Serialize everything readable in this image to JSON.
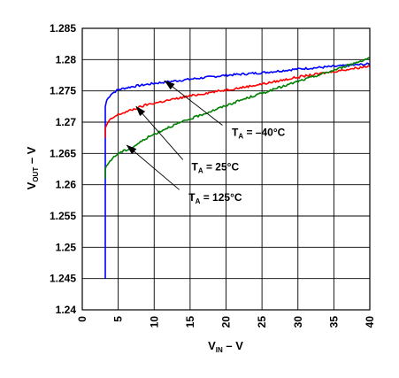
{
  "chart_data": {
    "type": "line",
    "xlabel": {
      "main": "V",
      "sub": "IN",
      "suffix": " – V"
    },
    "ylabel": {
      "main": "V",
      "sub": "OUT",
      "suffix": " – V"
    },
    "xlim": [
      0,
      40
    ],
    "ylim": [
      1.24,
      1.285
    ],
    "x_ticks": [
      "0",
      "5",
      "10",
      "15",
      "20",
      "25",
      "30",
      "35",
      "40"
    ],
    "y_ticks": [
      "1.24",
      "1.245",
      "1.25",
      "1.255",
      "1.26",
      "1.265",
      "1.27",
      "1.275",
      "1.28",
      "1.285"
    ],
    "grid": true,
    "series": [
      {
        "color": "#0000ff",
        "x": [
          3.2,
          3.2,
          3.4,
          4,
          5,
          7,
          10,
          13,
          16,
          20,
          25,
          30,
          35,
          40
        ],
        "y": [
          1.245,
          1.2725,
          1.2735,
          1.2745,
          1.2752,
          1.2757,
          1.2762,
          1.2766,
          1.277,
          1.2775,
          1.2779,
          1.2785,
          1.2789,
          1.2793
        ]
      },
      {
        "color": "#ff0000",
        "x": [
          3.2,
          3.2,
          3.5,
          4,
          5,
          7,
          9,
          12,
          15,
          18,
          22,
          26,
          30,
          35,
          40
        ],
        "y": [
          1.2675,
          1.269,
          1.2698,
          1.2705,
          1.2712,
          1.272,
          1.2728,
          1.2735,
          1.2742,
          1.2748,
          1.2755,
          1.2763,
          1.2772,
          1.2781,
          1.279
        ]
      },
      {
        "color": "#008000",
        "x": [
          3.2,
          3.2,
          3.5,
          4,
          5,
          7,
          9,
          12,
          15,
          18,
          22,
          26,
          30,
          35,
          40
        ],
        "y": [
          1.261,
          1.2625,
          1.2632,
          1.264,
          1.265,
          1.266,
          1.2675,
          1.2692,
          1.2705,
          1.2718,
          1.2735,
          1.275,
          1.2765,
          1.2783,
          1.2803
        ]
      }
    ],
    "annotations": [
      {
        "prefix": "T",
        "sub": "A",
        "text": " = –40°C",
        "label_x": 20.8,
        "label_y": 1.2678,
        "arrow_from": [
          19.5,
          1.2695
        ],
        "arrow_to": [
          11.5,
          1.2766
        ]
      },
      {
        "prefix": "T",
        "sub": "A",
        "text": " = 25°C",
        "label_x": 15.2,
        "label_y": 1.2623,
        "arrow_from": [
          14,
          1.264
        ],
        "arrow_to": [
          7.5,
          1.2725
        ]
      },
      {
        "prefix": "T",
        "sub": "A",
        "text": " = 125°C",
        "label_x": 14.8,
        "label_y": 1.2574,
        "arrow_from": [
          13.5,
          1.2592
        ],
        "arrow_to": [
          6.2,
          1.2663
        ]
      }
    ]
  }
}
